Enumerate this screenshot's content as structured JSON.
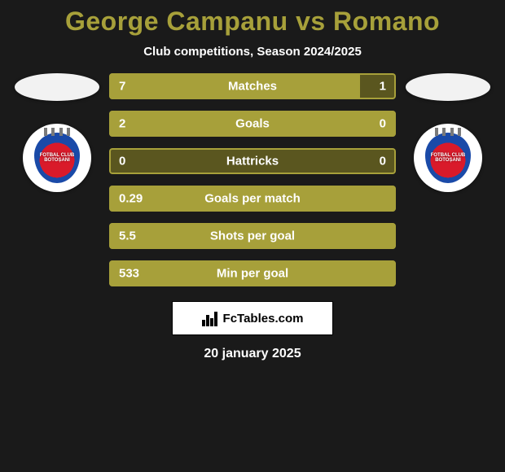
{
  "background_color": "#1a1a1a",
  "title": {
    "text": "George Campanu vs Romano",
    "color": "#a7a03a"
  },
  "subtitle": "Club competitions, Season 2024/2025",
  "flag_left_color": "#f2f2f2",
  "flag_right_color": "#f2f2f2",
  "crest": {
    "tower_color": "#7a7a7a",
    "line1": "FOTBAL CLUB",
    "line2": "BOTOȘANI"
  },
  "bar_colors": {
    "primary": "#a7a03a",
    "secondary": "#5a561f",
    "border": "#a7a03a",
    "text": "#ffffff"
  },
  "rows": [
    {
      "label": "Matches",
      "left": "7",
      "right": "1",
      "left_pct": 87.5,
      "right_pct": 12.5
    },
    {
      "label": "Goals",
      "left": "2",
      "right": "0",
      "left_pct": 100,
      "right_pct": 0
    },
    {
      "label": "Hattricks",
      "left": "0",
      "right": "0",
      "left_pct": 0,
      "right_pct": 100
    },
    {
      "label": "Goals per match",
      "left": "0.29",
      "right": "",
      "left_pct": 100,
      "right_pct": 0
    },
    {
      "label": "Shots per goal",
      "left": "5.5",
      "right": "",
      "left_pct": 100,
      "right_pct": 0
    },
    {
      "label": "Min per goal",
      "left": "533",
      "right": "",
      "left_pct": 100,
      "right_pct": 0
    }
  ],
  "attribution": "FcTables.com",
  "date": "20 january 2025"
}
